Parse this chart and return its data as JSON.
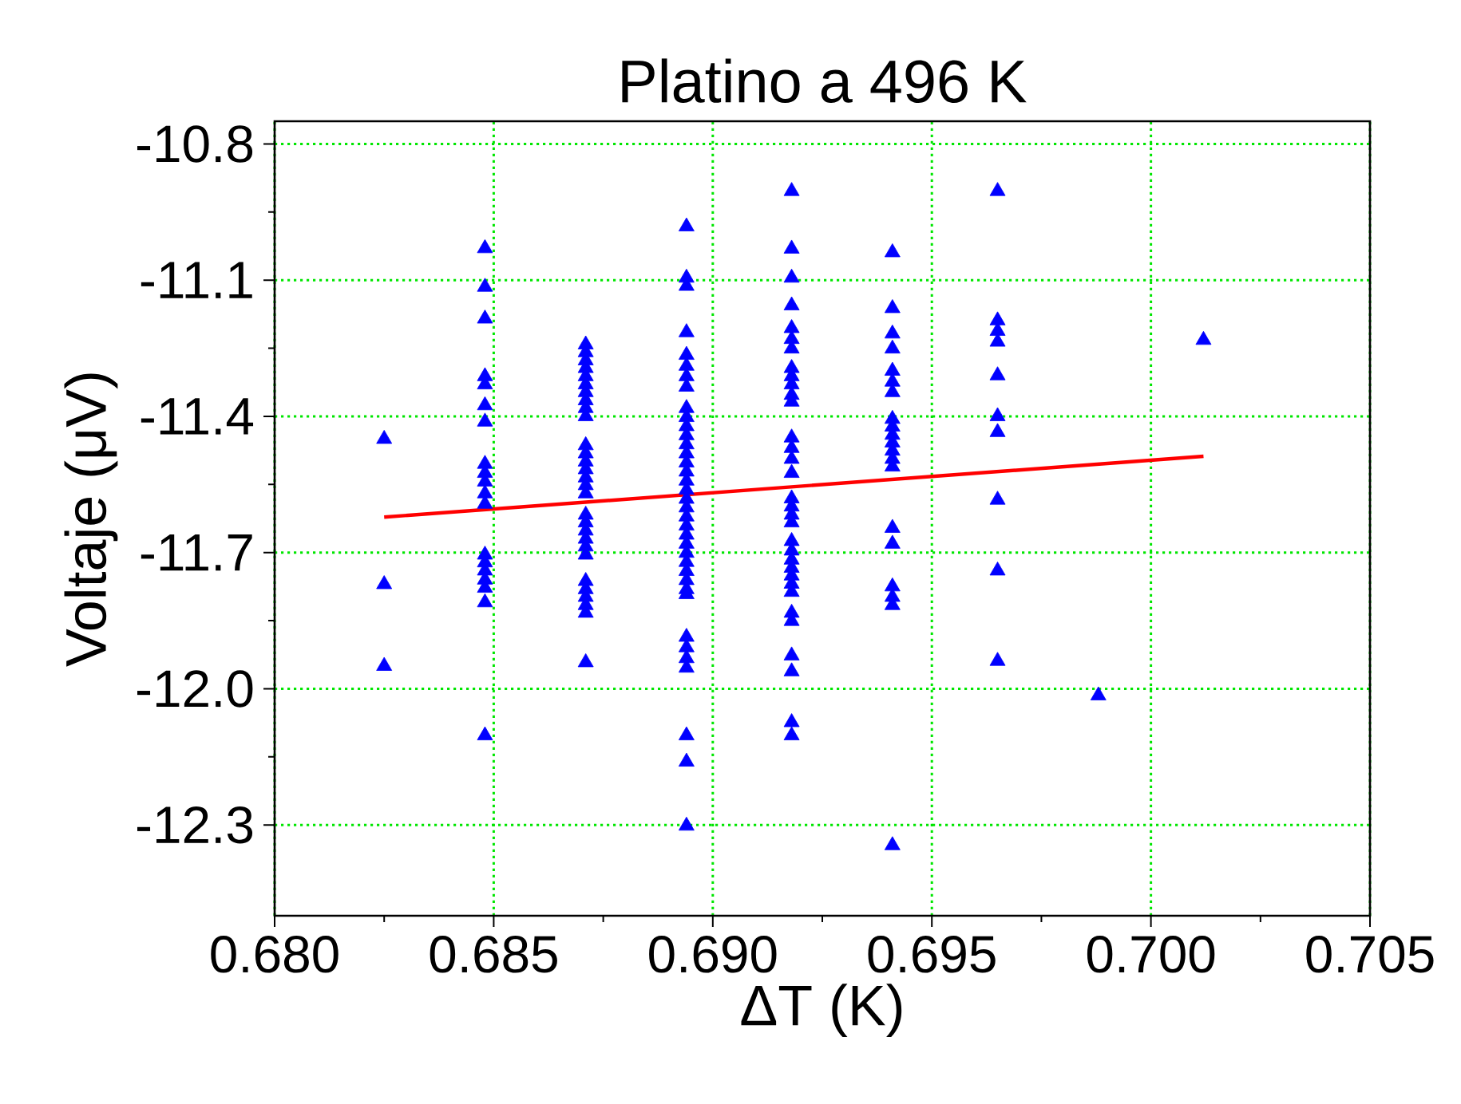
{
  "chart_data": {
    "type": "scatter",
    "title": "Platino a 496 K",
    "xlabel": "ΔT (K)",
    "ylabel": "Voltaje (μV)",
    "xlim": [
      0.68,
      0.705
    ],
    "xticks": [
      {
        "value": 0.68,
        "label": "0.680"
      },
      {
        "value": 0.685,
        "label": "0.685"
      },
      {
        "value": 0.69,
        "label": "0.690"
      },
      {
        "value": 0.695,
        "label": "0.695"
      },
      {
        "value": 0.7,
        "label": "0.700"
      },
      {
        "value": 0.705,
        "label": "0.705"
      }
    ],
    "ylim": [
      -12.5,
      -10.75
    ],
    "yticks": [
      {
        "value": -12.3,
        "label": "-12.3"
      },
      {
        "value": -12.0,
        "label": "-12.0"
      },
      {
        "value": -11.7,
        "label": "-11.7"
      },
      {
        "value": -11.4,
        "label": "-11.4"
      },
      {
        "value": -11.1,
        "label": "-11.1"
      },
      {
        "value": -10.8,
        "label": "-10.8"
      }
    ],
    "grid": true,
    "marker": "triangle",
    "series": [
      {
        "color": "#0000ff",
        "x": [
          0.6825,
          0.6825,
          0.6825,
          0.6848,
          0.6848,
          0.6848,
          0.6848,
          0.6848,
          0.6848,
          0.6848,
          0.6848,
          0.6848,
          0.6848,
          0.6848,
          0.6848,
          0.6848,
          0.6848,
          0.6848,
          0.6848,
          0.6848,
          0.6848,
          0.6848,
          0.6871,
          0.6871,
          0.6871,
          0.6871,
          0.6871,
          0.6871,
          0.6871,
          0.6871,
          0.6871,
          0.6871,
          0.6871,
          0.6871,
          0.6871,
          0.6871,
          0.6871,
          0.6871,
          0.6871,
          0.6871,
          0.6871,
          0.6871,
          0.6871,
          0.6871,
          0.6871,
          0.6871,
          0.6871,
          0.6871,
          0.6871,
          0.6871,
          0.6871,
          0.6894,
          0.6894,
          0.6894,
          0.6894,
          0.6894,
          0.6894,
          0.6894,
          0.6894,
          0.6894,
          0.6894,
          0.6894,
          0.6894,
          0.6894,
          0.6894,
          0.6894,
          0.6894,
          0.6894,
          0.6894,
          0.6894,
          0.6894,
          0.6894,
          0.6894,
          0.6894,
          0.6894,
          0.6894,
          0.6894,
          0.6894,
          0.6894,
          0.6894,
          0.6894,
          0.6894,
          0.6894,
          0.6894,
          0.6894,
          0.6894,
          0.6894,
          0.6894,
          0.6918,
          0.6918,
          0.6918,
          0.6918,
          0.6918,
          0.6918,
          0.6918,
          0.6918,
          0.6918,
          0.6918,
          0.6918,
          0.6918,
          0.6918,
          0.6918,
          0.6918,
          0.6918,
          0.6918,
          0.6918,
          0.6918,
          0.6918,
          0.6918,
          0.6918,
          0.6918,
          0.6918,
          0.6918,
          0.6918,
          0.6918,
          0.6918,
          0.6918,
          0.6918,
          0.6918,
          0.6918,
          0.6918,
          0.6941,
          0.6941,
          0.6941,
          0.6941,
          0.6941,
          0.6941,
          0.6941,
          0.6941,
          0.6941,
          0.6941,
          0.6941,
          0.6941,
          0.6941,
          0.6941,
          0.6941,
          0.6941,
          0.6941,
          0.6941,
          0.6941,
          0.6941,
          0.6965,
          0.6965,
          0.6965,
          0.6965,
          0.6965,
          0.6965,
          0.6965,
          0.6965,
          0.6965,
          0.6965,
          0.6988,
          0.7012
        ],
        "values": [
          -11.45,
          -11.77,
          -11.95,
          -11.03,
          -11.115,
          -11.185,
          -11.312,
          -11.33,
          -11.376,
          -11.412,
          -11.505,
          -11.525,
          -11.544,
          -11.57,
          -11.593,
          -11.705,
          -11.722,
          -11.74,
          -11.76,
          -11.778,
          -11.81,
          -12.103,
          -11.242,
          -11.259,
          -11.277,
          -11.294,
          -11.312,
          -11.33,
          -11.347,
          -11.365,
          -11.382,
          -11.4,
          -11.464,
          -11.482,
          -11.5,
          -11.517,
          -11.535,
          -11.552,
          -11.57,
          -11.617,
          -11.634,
          -11.652,
          -11.67,
          -11.687,
          -11.705,
          -11.763,
          -11.781,
          -11.798,
          -11.816,
          -11.833,
          -11.942,
          -10.982,
          -11.095,
          -11.113,
          -11.215,
          -11.265,
          -11.289,
          -11.312,
          -11.335,
          -11.382,
          -11.402,
          -11.422,
          -11.442,
          -11.462,
          -11.482,
          -11.502,
          -11.522,
          -11.542,
          -11.562,
          -11.582,
          -11.601,
          -11.621,
          -11.641,
          -11.661,
          -11.681,
          -11.701,
          -11.721,
          -11.741,
          -11.761,
          -11.781,
          -11.792,
          -11.886,
          -11.909,
          -11.933,
          -11.954,
          -12.103,
          -12.161,
          -12.302,
          -10.904,
          -11.031,
          -11.095,
          -11.156,
          -11.206,
          -11.23,
          -11.251,
          -11.294,
          -11.312,
          -11.33,
          -11.353,
          -11.368,
          -11.447,
          -11.47,
          -11.494,
          -11.525,
          -11.581,
          -11.599,
          -11.617,
          -11.634,
          -11.675,
          -11.696,
          -11.716,
          -11.734,
          -11.751,
          -11.769,
          -11.787,
          -11.833,
          -11.851,
          -11.927,
          -11.962,
          -12.074,
          -12.103,
          -11.039,
          -11.162,
          -11.218,
          -11.251,
          -11.3,
          -11.324,
          -11.347,
          -11.406,
          -11.423,
          -11.441,
          -11.458,
          -11.476,
          -11.494,
          -11.511,
          -11.646,
          -11.681,
          -11.775,
          -11.798,
          -11.816,
          -12.345,
          -10.904,
          -11.189,
          -11.212,
          -11.236,
          -11.31,
          -11.4,
          -11.435,
          -11.584,
          -11.74,
          -11.939,
          -12.015,
          -11.232
        ]
      },
      {
        "type": "line",
        "color": "#ff0000",
        "marker": "none",
        "x": [
          0.6825,
          0.7012
        ],
        "values": [
          -11.622,
          -11.488
        ]
      }
    ]
  }
}
